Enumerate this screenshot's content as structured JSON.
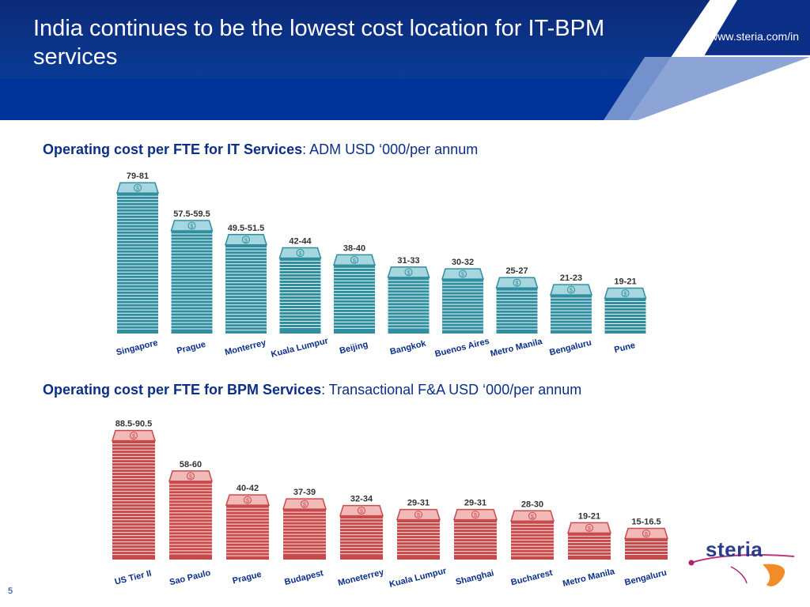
{
  "header": {
    "title": "India continues to be the lowest cost location for IT-BPM services",
    "url": "www.steria.com/in",
    "arrow_icon": "arrow-right-icon"
  },
  "section1": {
    "title_bold": "Operating cost per FTE for IT Services",
    "title_rest": ": ADM USD ‘000/per annum"
  },
  "section2": {
    "title_bold": "Operating cost per FTE for BPM Services",
    "title_rest": ": Transactional F&A USD ‘000/per annum"
  },
  "page_number": "5",
  "logo": {
    "text": "steria"
  },
  "colors": {
    "header_blue": "#0b2f86",
    "it_stack": "#2f8fa0",
    "bpm_stack": "#c94a4a"
  },
  "chart_data": [
    {
      "type": "bar",
      "categories": [
        "Singapore",
        "Prague",
        "Monterrey",
        "Kuala Lumpur",
        "Beijing",
        "Bangkok",
        "Buenos Aires",
        "Metro Manila",
        "Bengaluru",
        "Pune"
      ],
      "labels": [
        "79-81",
        "57.5-59.5",
        "49.5-51.5",
        "42-44",
        "38-40",
        "31-33",
        "30-32",
        "25-27",
        "21-23",
        "19-21"
      ],
      "values": [
        80,
        58.5,
        50.5,
        43,
        39,
        32,
        31,
        26,
        22,
        20
      ],
      "ylim": [
        0,
        81
      ]
    },
    {
      "type": "bar",
      "categories": [
        "US Tier II",
        "Sao Paulo",
        "Prague",
        "Budapest",
        "Moneterrey",
        "Kuala Lumpur",
        "Shanghai",
        "Bucharest",
        "Metro Manila",
        "Bengaluru"
      ],
      "labels": [
        "88.5-90.5",
        "58-60",
        "40-42",
        "37-39",
        "32-34",
        "29-31",
        "29-31",
        "28-30",
        "19-21",
        "15-16.5"
      ],
      "values": [
        89.5,
        59,
        41,
        38,
        33,
        30,
        30,
        29,
        20,
        15.75
      ],
      "ylim": [
        0,
        90.5
      ]
    }
  ]
}
